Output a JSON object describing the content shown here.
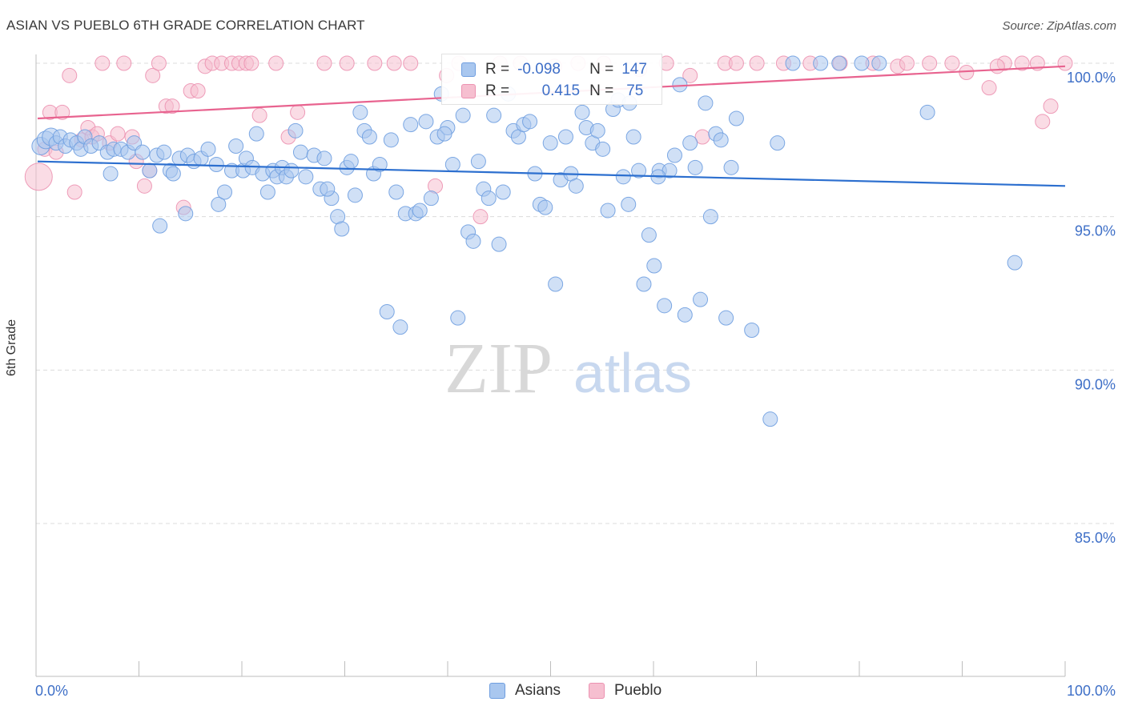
{
  "header": {
    "title": "ASIAN VS PUEBLO 6TH GRADE CORRELATION CHART",
    "source": "Source: ZipAtlas.com"
  },
  "watermark": {
    "zip": "ZIP",
    "atlas": "atlas"
  },
  "legend": {
    "asians": {
      "r_label": "R =",
      "r_value": "-0.098",
      "n_label": "N =",
      "n_value": "147"
    },
    "pueblo": {
      "r_label": "R =",
      "r_value": "0.415",
      "n_label": "N =",
      "n_value": "75"
    }
  },
  "bottom_legend": {
    "asians": "Asians",
    "pueblo": "Pueblo"
  },
  "colors": {
    "asians_fill": "#a9c7ef",
    "asians_stroke": "#6f9ee0",
    "asians_line": "#2c6fcf",
    "pueblo_fill": "#f6bfd0",
    "pueblo_stroke": "#ec92b1",
    "pueblo_line": "#e8638f",
    "tick_label": "#3e6fc7"
  },
  "chart_data": {
    "type": "scatter",
    "title": "ASIAN VS PUEBLO 6TH GRADE CORRELATION CHART",
    "xlabel": "",
    "ylabel": "6th Grade",
    "xlim": [
      0,
      100
    ],
    "ylim": [
      80.5,
      100.8
    ],
    "x_tick_labels": [
      "0.0%",
      "100.0%"
    ],
    "y_ticks": [
      85,
      90,
      95,
      100
    ],
    "y_tick_labels": [
      "85.0%",
      "90.0%",
      "95.0%",
      "100.0%"
    ],
    "grid": true,
    "legend_position": "top-center",
    "series": [
      {
        "name": "Asians",
        "r": -0.098,
        "n": 147,
        "trend": {
          "x": [
            0,
            100
          ],
          "y": [
            96.8,
            96.0
          ]
        },
        "points": [
          [
            0.3,
            97.3
          ],
          [
            0.8,
            97.5
          ],
          [
            1.3,
            97.6
          ],
          [
            1.8,
            97.4
          ],
          [
            2.2,
            97.6
          ],
          [
            2.7,
            97.3
          ],
          [
            3.2,
            97.5
          ],
          [
            3.8,
            97.4
          ],
          [
            4.2,
            97.2
          ],
          [
            4.6,
            97.6
          ],
          [
            5.2,
            97.3
          ],
          [
            6.0,
            97.4
          ],
          [
            6.8,
            97.1
          ],
          [
            7.1,
            96.4
          ],
          [
            7.4,
            97.2
          ],
          [
            8.1,
            97.2
          ],
          [
            8.8,
            97.1
          ],
          [
            9.4,
            97.4
          ],
          [
            10.2,
            97.1
          ],
          [
            10.9,
            96.5
          ],
          [
            11.6,
            97.0
          ],
          [
            11.9,
            94.7
          ],
          [
            12.3,
            97.1
          ],
          [
            12.9,
            96.5
          ],
          [
            13.2,
            96.4
          ],
          [
            13.8,
            96.9
          ],
          [
            14.4,
            95.1
          ],
          [
            14.6,
            97.0
          ],
          [
            15.2,
            96.8
          ],
          [
            15.9,
            96.9
          ],
          [
            16.6,
            97.2
          ],
          [
            17.4,
            96.7
          ],
          [
            17.6,
            95.4
          ],
          [
            18.2,
            95.8
          ],
          [
            18.9,
            96.5
          ],
          [
            19.3,
            97.3
          ],
          [
            20.0,
            96.5
          ],
          [
            20.3,
            96.9
          ],
          [
            20.9,
            96.6
          ],
          [
            21.3,
            97.7
          ],
          [
            21.9,
            96.4
          ],
          [
            22.4,
            95.8
          ],
          [
            22.9,
            96.5
          ],
          [
            23.3,
            96.3
          ],
          [
            23.8,
            96.6
          ],
          [
            24.2,
            96.3
          ],
          [
            24.7,
            96.5
          ],
          [
            25.1,
            97.8
          ],
          [
            25.6,
            97.1
          ],
          [
            26.1,
            96.3
          ],
          [
            26.9,
            97.0
          ],
          [
            27.5,
            95.9
          ],
          [
            27.9,
            96.9
          ],
          [
            28.6,
            95.6
          ],
          [
            29.2,
            95.0
          ],
          [
            29.6,
            94.6
          ],
          [
            30.1,
            96.6
          ],
          [
            30.5,
            96.8
          ],
          [
            30.9,
            95.7
          ],
          [
            31.4,
            98.4
          ],
          [
            31.8,
            97.8
          ],
          [
            32.3,
            97.6
          ],
          [
            32.7,
            96.4
          ],
          [
            33.3,
            96.7
          ],
          [
            34.0,
            91.9
          ],
          [
            34.4,
            97.5
          ],
          [
            34.9,
            95.8
          ],
          [
            35.3,
            91.4
          ],
          [
            35.8,
            95.1
          ],
          [
            36.3,
            98.0
          ],
          [
            36.8,
            95.1
          ],
          [
            37.2,
            95.2
          ],
          [
            37.8,
            98.1
          ],
          [
            38.3,
            95.6
          ],
          [
            38.9,
            97.6
          ],
          [
            39.3,
            99.0
          ],
          [
            39.9,
            97.9
          ],
          [
            40.4,
            96.7
          ],
          [
            40.9,
            91.7
          ],
          [
            41.4,
            98.3
          ],
          [
            41.9,
            94.5
          ],
          [
            42.4,
            94.2
          ],
          [
            42.9,
            96.8
          ],
          [
            43.4,
            95.9
          ],
          [
            43.9,
            95.6
          ],
          [
            44.4,
            98.3
          ],
          [
            44.9,
            94.1
          ],
          [
            45.3,
            95.8
          ],
          [
            45.8,
            99.0
          ],
          [
            46.3,
            97.8
          ],
          [
            46.8,
            97.6
          ],
          [
            47.3,
            98.0
          ],
          [
            47.9,
            98.1
          ],
          [
            48.4,
            96.4
          ],
          [
            48.9,
            95.4
          ],
          [
            49.4,
            95.3
          ],
          [
            49.9,
            97.4
          ],
          [
            50.4,
            92.8
          ],
          [
            50.9,
            96.2
          ],
          [
            51.4,
            97.6
          ],
          [
            51.9,
            96.4
          ],
          [
            52.4,
            96.0
          ],
          [
            53.0,
            98.4
          ],
          [
            53.4,
            97.9
          ],
          [
            54.0,
            97.4
          ],
          [
            54.5,
            97.8
          ],
          [
            55.0,
            97.2
          ],
          [
            55.5,
            95.2
          ],
          [
            56.0,
            98.5
          ],
          [
            56.5,
            98.8
          ],
          [
            57.0,
            96.3
          ],
          [
            57.5,
            95.4
          ],
          [
            58.0,
            97.6
          ],
          [
            58.5,
            96.5
          ],
          [
            59.0,
            92.8
          ],
          [
            59.5,
            94.4
          ],
          [
            60.0,
            93.4
          ],
          [
            60.5,
            96.5
          ],
          [
            61.0,
            92.1
          ],
          [
            61.5,
            96.5
          ],
          [
            62.0,
            97.0
          ],
          [
            62.5,
            99.3
          ],
          [
            63.0,
            91.8
          ],
          [
            63.5,
            97.4
          ],
          [
            64.0,
            96.6
          ],
          [
            64.5,
            92.3
          ],
          [
            65.0,
            98.7
          ],
          [
            65.5,
            95.0
          ],
          [
            66.0,
            97.7
          ],
          [
            66.5,
            97.5
          ],
          [
            67.0,
            91.7
          ],
          [
            67.5,
            96.6
          ],
          [
            68.0,
            98.2
          ],
          [
            69.5,
            91.3
          ],
          [
            71.3,
            88.4
          ],
          [
            72.0,
            97.4
          ],
          [
            73.5,
            100.0
          ],
          [
            76.2,
            100.0
          ],
          [
            78.0,
            100.0
          ],
          [
            80.2,
            100.0
          ],
          [
            81.9,
            100.0
          ],
          [
            86.6,
            98.4
          ],
          [
            95.1,
            93.5
          ],
          [
            28.2,
            95.9
          ],
          [
            39.6,
            97.7
          ],
          [
            57.6,
            98.7
          ],
          [
            60.4,
            96.3
          ]
        ]
      },
      {
        "name": "Pueblo",
        "r": 0.415,
        "n": 75,
        "trend": {
          "x": [
            0,
            100
          ],
          "y": [
            98.2,
            99.9
          ]
        },
        "points": [
          [
            0.1,
            96.3
          ],
          [
            0.7,
            97.2
          ],
          [
            1.2,
            98.4
          ],
          [
            1.8,
            97.1
          ],
          [
            2.4,
            98.4
          ],
          [
            3.1,
            99.6
          ],
          [
            3.6,
            95.8
          ],
          [
            4.3,
            97.5
          ],
          [
            4.9,
            97.9
          ],
          [
            5.3,
            97.6
          ],
          [
            5.8,
            97.7
          ],
          [
            6.3,
            100.0
          ],
          [
            7.0,
            97.4
          ],
          [
            7.8,
            97.7
          ],
          [
            8.4,
            100.0
          ],
          [
            9.2,
            97.6
          ],
          [
            9.6,
            96.8
          ],
          [
            10.4,
            96.0
          ],
          [
            10.9,
            96.5
          ],
          [
            11.2,
            99.6
          ],
          [
            11.8,
            100.0
          ],
          [
            12.5,
            98.6
          ],
          [
            13.1,
            98.6
          ],
          [
            14.2,
            95.3
          ],
          [
            14.9,
            99.1
          ],
          [
            15.6,
            99.1
          ],
          [
            16.3,
            99.9
          ],
          [
            17.0,
            100.0
          ],
          [
            17.9,
            100.0
          ],
          [
            18.9,
            100.0
          ],
          [
            19.6,
            100.0
          ],
          [
            20.3,
            100.0
          ],
          [
            20.8,
            100.0
          ],
          [
            21.6,
            98.3
          ],
          [
            23.2,
            100.0
          ],
          [
            24.4,
            97.6
          ],
          [
            25.3,
            98.4
          ],
          [
            27.9,
            100.0
          ],
          [
            30.1,
            100.0
          ],
          [
            32.8,
            100.0
          ],
          [
            34.7,
            100.0
          ],
          [
            36.3,
            100.0
          ],
          [
            38.7,
            96.0
          ],
          [
            39.8,
            99.6
          ],
          [
            41.0,
            100.0
          ],
          [
            43.1,
            95.0
          ],
          [
            45.0,
            100.0
          ],
          [
            47.0,
            100.0
          ],
          [
            50.3,
            99.9
          ],
          [
            52.6,
            100.0
          ],
          [
            55.1,
            100.0
          ],
          [
            58.6,
            99.8
          ],
          [
            61.2,
            100.0
          ],
          [
            63.5,
            99.6
          ],
          [
            64.7,
            97.6
          ],
          [
            66.9,
            100.0
          ],
          [
            68.0,
            100.0
          ],
          [
            70.0,
            100.0
          ],
          [
            72.6,
            100.0
          ],
          [
            75.2,
            100.0
          ],
          [
            78.1,
            100.0
          ],
          [
            81.3,
            100.0
          ],
          [
            83.7,
            99.9
          ],
          [
            86.8,
            100.0
          ],
          [
            89.0,
            100.0
          ],
          [
            90.4,
            99.7
          ],
          [
            92.6,
            99.2
          ],
          [
            94.1,
            100.0
          ],
          [
            95.8,
            100.0
          ],
          [
            97.3,
            100.0
          ],
          [
            98.6,
            98.6
          ],
          [
            100.0,
            100.0
          ],
          [
            93.4,
            99.9
          ],
          [
            97.8,
            98.1
          ],
          [
            84.6,
            100.0
          ]
        ]
      }
    ]
  }
}
